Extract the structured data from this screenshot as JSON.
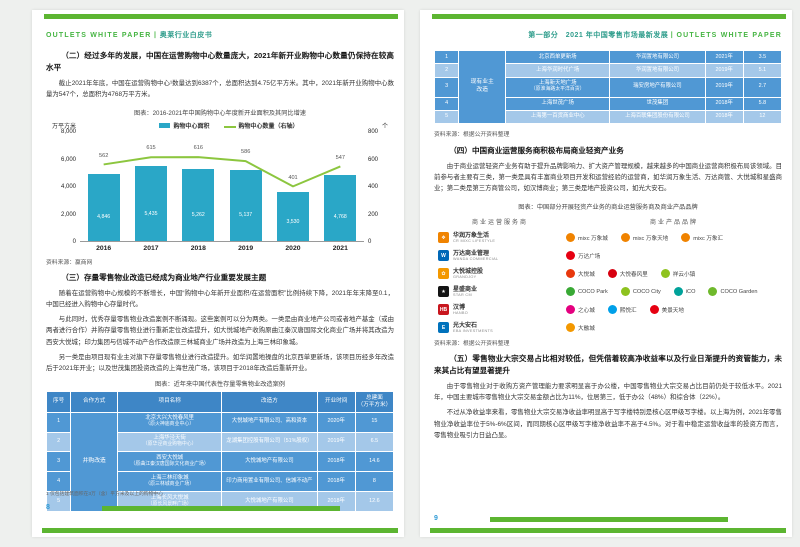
{
  "palette": {
    "accent_green": "#5cb531",
    "header_en_green": "#46b543",
    "header_cn_teal": "#2f9d8c",
    "table_header_blue": "#3e86c6",
    "table_dark_blue": "#5098d4",
    "table_light_blue": "#a4c8e9",
    "bar_teal": "#2aa7c7",
    "line_green": "#8cc63f",
    "page_number_blue": "#2e9bd6"
  },
  "left_page": {
    "header": {
      "en": "OUTLETS  WHITE  PAPER",
      "sep": "丨",
      "cn": "奥莱行业白皮书"
    },
    "section2": {
      "title": "（二）经过多年的发展，中国在运营购物中心数量庞大，2021年新开业购物中心数量仍保持在较高水平",
      "body": "截止2021年年底，中国在运营购物中心¹数量达到6387个，总面积达到4.75亿平方米。其中，2021年新开业购物中心数量为547个，总面积为4768万平方米。"
    },
    "chart_source": "资料来源：赢商网",
    "section3": {
      "title": "（三）存量零售物业改造已经成为商业地产行业重要发展主题",
      "p1": "随着在运营购物中心规模的不断增长，中国“购物中心年新开业面积/在运营面积”比例持续下降，2021年年末降至0.1，中国已经进入购物中心存量时代。",
      "p2": "与此同时，优秀存量零售物业改造案例不断涌现。这些案例可以分为两类。一类是由商业地产公司或者地产基金（或由两者进行合作）并购存量零售物业进行重新定位改造提升，如大悦城地产收购原曲江秦汉唐国际文化商业广场并将其改造为西安大悦城；印力集团与信城不动产合作改造原三林城商业广场并改造为上海三林印象城。",
      "p3": "另一类是由项目现有业主对旗下存量零售物业进行改造提升。如华润置地操盘的北京西单更新场，该项目历经多年改造后于2021年开业；以及世茂集团投资改造的上海世茂广场，该项目于2018年改造后重新开业。"
    },
    "table_title": "图表：近年来中国代表性存量零售物业改造案例",
    "table": {
      "columns": [
        [
          "序号"
        ],
        [
          "合作方式"
        ],
        [
          "项目名称"
        ],
        [
          "改造方"
        ],
        [
          "开业时间"
        ],
        [
          "总建面",
          "（万平方米）"
        ]
      ],
      "merge_label": [
        "并购改造"
      ],
      "rows": [
        {
          "no": "1",
          "shade": "dark",
          "name": [
            "北京大兴大悦春风里",
            "（原火神庙商业中心）"
          ],
          "renovator": "大悦城地产有限公司、高和资本",
          "time": "2020年",
          "area": "15"
        },
        {
          "no": "2",
          "shade": "light",
          "name": [
            "上海华泾天街",
            "（原华泾商业购物中心）"
          ],
          "renovator": "龙湖集团控股有限公司（51%股权）",
          "time": "2019年",
          "area": "6.5"
        },
        {
          "no": "3",
          "shade": "dark",
          "name": [
            "西安大悦城",
            "（原曲江秦汉唐国际文化商业广场）"
          ],
          "renovator": "大悦城地产有限公司",
          "time": "2018年",
          "area": "14.6"
        },
        {
          "no": "4",
          "shade": "dark",
          "name": [
            "上海三林印象城",
            "（原三林城商业广场）"
          ],
          "renovator": "印力商用置业有限公司、信城不动产",
          "time": "2018年",
          "area": "8"
        },
        {
          "no": "5",
          "shade": "light",
          "name": [
            "上海长风大悦城",
            "（原长风景畔广场）"
          ],
          "renovator": "大悦城地产有限公司",
          "time": "2018年",
          "area": "12.6"
        }
      ]
    },
    "footnote": "1 仅包括建筑面积在3万（含）平方米及以上的购物中心",
    "page_number": "8"
  },
  "right_page": {
    "header": {
      "cn": "第一部分　2021 年中国零售市场最新发展",
      "sep": "丨",
      "en": "OUTLETS  WHITE  PAPER"
    },
    "table": {
      "merge_label": [
        "现有业主",
        "改造"
      ],
      "rows": [
        {
          "no": "1",
          "shade": "dark",
          "name": [
            "北京西单更新场"
          ],
          "renovator": "华润置地有限公司",
          "time": "2021年",
          "area": "3.5"
        },
        {
          "no": "2",
          "shade": "light",
          "name": [
            "上海华润时代广场"
          ],
          "renovator": "华润置地有限公司",
          "time": "2019年",
          "area": "5.1"
        },
        {
          "no": "3",
          "shade": "dark",
          "name": [
            "上海新天地广场",
            "（原淮海路太平洋百货）"
          ],
          "renovator": "瑞安房地产有限公司",
          "time": "2019年",
          "area": "2.7"
        },
        {
          "no": "4",
          "shade": "dark",
          "name": [
            "上海世茂广场"
          ],
          "renovator": "世茂集团",
          "time": "2018年",
          "area": "5.8"
        },
        {
          "no": "5",
          "shade": "light",
          "name": [
            "上海第一百货商业中心"
          ],
          "renovator": "上海百联集团股份有限公司",
          "time": "2018年",
          "area": "12"
        }
      ]
    },
    "source1": "资料来源：根据公开资料整理",
    "section4": {
      "title": "（四）中国商业运营服务商积极布局商业轻资产业务",
      "body": "由于商业运营轻资产业务有助于提升品牌影响力、扩大资产管理规模，越来越多的中国商业运营商积极布局该领域。目前参与者主要有三类，第一类是具有丰富商业项目开发和运营经验的运营商，如华润万象生活、万达商管、大悦城和星盛商业；第二类是第三方商管公司，如汉博商业；第三类是地产投资公司，如光大安石。"
    },
    "figure_title": "图表：中国部分开展轻资产业务的商业运营服务商及商业产品品牌",
    "figure_headers": {
      "left": "商业运营服务商",
      "right": "商业产品品牌"
    },
    "brand_rows": [
      {
        "provider": {
          "name": "华润万象生活",
          "sub": "CR MIXC LIFESTYLE",
          "color": "#f08300",
          "glyph": "❖"
        },
        "brands": [
          {
            "label": "mixc 万象城",
            "dot": "#f08300"
          },
          {
            "label": "mixc 万象天地",
            "dot": "#f08300"
          },
          {
            "label": "mixc 万象汇",
            "dot": "#f08300"
          }
        ]
      },
      {
        "provider": {
          "name": "万达商业管理",
          "sub": "WANDA COMMERCIAL",
          "color": "#0068b7",
          "glyph": "W"
        },
        "brands": [
          {
            "label": "万达广场",
            "dot": "#e60012"
          }
        ]
      },
      {
        "provider": {
          "name": "大悦城控股",
          "sub": "GRANDJOY",
          "color": "#f39800",
          "glyph": "✿"
        },
        "brands": [
          {
            "label": "大悦城",
            "dot": "#e8380d"
          },
          {
            "label": "大悦春风里",
            "dot": "#d7000f"
          },
          {
            "label": "祥云小镇",
            "dot": "#8fc31f"
          }
        ]
      },
      {
        "provider": {
          "name": "星盛商业",
          "sub": "STAR CM",
          "color": "#141414",
          "glyph": "★"
        },
        "brands": [
          {
            "label": "COCO Park",
            "dot": "#39a935"
          },
          {
            "label": "COCO City",
            "dot": "#8dc21f"
          },
          {
            "label": "iCO",
            "dot": "#00a29a"
          },
          {
            "label": "COCO Garden",
            "dot": "#6fb92c"
          }
        ]
      },
      {
        "provider": {
          "name": "汉博",
          "sub": "HANBO",
          "color": "#c8161e",
          "glyph": "HB"
        },
        "brands": [
          {
            "label": "之心城",
            "dot": "#e4007f"
          },
          {
            "label": "熙悦汇",
            "dot": "#00a0e9"
          },
          {
            "label": "美景天地",
            "dot": "#e60012"
          }
        ]
      },
      {
        "provider": {
          "name": "光大安石",
          "sub": "EBA INVESTMENTS",
          "color": "#0072bc",
          "glyph": "E"
        },
        "brands": [
          {
            "label": "大融城",
            "dot": "#f39800"
          }
        ]
      }
    ],
    "source2": "资料来源：根据公开资料整理",
    "section5": {
      "title": "（五）零售物业大宗交易占比相对较低，但凭借着较高净收益率以及行业日渐提升的资管能力，未来其占比有望显著提升",
      "p1": "由于零售物业对于收购方资产管理能力要求明显高于办公楼，中国零售物业大宗交易占比目前仍处于较低水平。2021年，中国主要城市零售物业大宗交易金额占比为11%，位居第三，低于办公（48%）和综合体（22%）。",
      "p2": "不过从净收益率来看，零售物业大宗交易净收益率明显高于写字楼特别是核心区甲级写字楼。以上海为例，2021年零售物业净收益率位于5%-6%区间，而同期核心区甲级写字楼净收益率不高于4.5%。对于看中稳定运营收益率的投资方而言，零售物业吸引力日益凸显。"
    },
    "page_number": "9"
  },
  "chart_data": {
    "type": "bar",
    "title": "图表：2016-2021年中国购物中心年度新开业面积及其同比增速",
    "categories": [
      "2016",
      "2017",
      "2018",
      "2019",
      "2020",
      "2021"
    ],
    "series": [
      {
        "name": "购物中心面积",
        "type": "bar",
        "axis": "left",
        "values": [
          4846,
          5435,
          5262,
          5137,
          3530,
          4768
        ]
      },
      {
        "name": "购物中心数量（右轴）",
        "type": "line",
        "axis": "right",
        "values": [
          562,
          615,
          616,
          586,
          401,
          547
        ]
      }
    ],
    "left_axis": {
      "unit": "万平方米",
      "min": 0,
      "max": 8000,
      "ticks": [
        0,
        2000,
        4000,
        6000,
        8000
      ]
    },
    "right_axis": {
      "unit": "个",
      "min": 0,
      "max": 800,
      "ticks": [
        0,
        200,
        400,
        600,
        800
      ]
    },
    "bar_color": "#2aa7c7",
    "line_color": "#8cc63f",
    "legend_position": "top",
    "grid": false
  }
}
